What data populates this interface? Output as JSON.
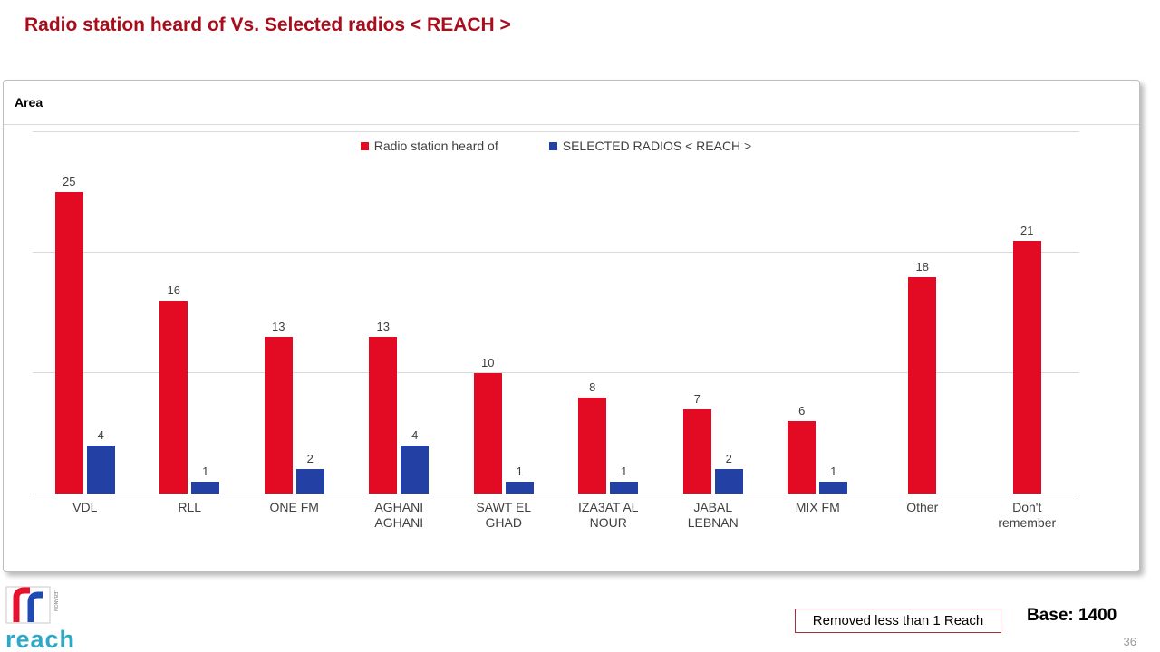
{
  "title": "Radio station heard of Vs. Selected radios < REACH >",
  "panel": {
    "header": "Area"
  },
  "chart_data": {
    "type": "bar",
    "title": "Radio station heard of Vs. Selected radios < REACH >",
    "categories": [
      "VDL",
      "RLL",
      "ONE FM",
      "AGHANI AGHANI",
      "SAWT EL GHAD",
      "IZA3AT AL NOUR",
      "JABAL LEBNAN",
      "MIX FM",
      "Other",
      "Don't remember"
    ],
    "series": [
      {
        "name": "Radio station heard of",
        "color": "#E30A23",
        "values": [
          25,
          16,
          13,
          13,
          10,
          8,
          7,
          6,
          18,
          21
        ]
      },
      {
        "name": "SELECTED RADIOS < REACH >",
        "color": "#2341A5",
        "values": [
          4,
          1,
          2,
          4,
          1,
          1,
          2,
          1,
          null,
          null
        ]
      }
    ],
    "xlabel": "",
    "ylabel": "",
    "ylim": [
      0,
      30
    ],
    "gridlines": [
      0,
      10,
      20,
      30
    ],
    "grid": "horizontal",
    "legend_position": "top-center"
  },
  "footer": {
    "note": "Removed less than 1 Reach",
    "base": "Base: 1400",
    "page_number": "36",
    "logo_text": "reach",
    "logo_subtext": "LEBANON"
  },
  "colors": {
    "title": "#A80D1C",
    "series_red": "#E30A23",
    "series_blue": "#2341A5",
    "logo_teal": "#2FA8C5",
    "note_border": "#9E3039"
  }
}
